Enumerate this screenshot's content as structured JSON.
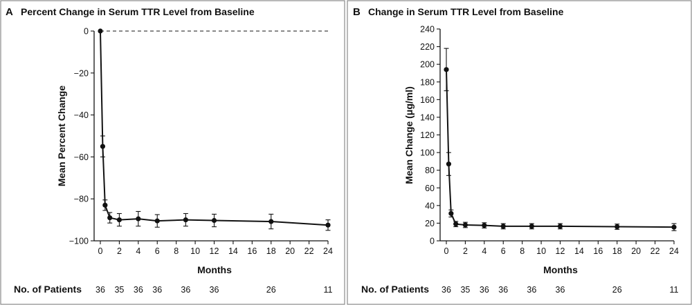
{
  "patients_label": "No. of Patients",
  "chart_data": [
    {
      "panel": "A",
      "type": "line",
      "title": "Percent Change in Serum TTR Level from Baseline",
      "xlabel": "Months",
      "ylabel": "Mean Percent Change",
      "xlim": [
        0,
        24
      ],
      "ylim": [
        -100,
        0
      ],
      "x_ticks": [
        0,
        2,
        4,
        6,
        8,
        10,
        12,
        14,
        16,
        18,
        20,
        22,
        24
      ],
      "y_ticks": [
        0,
        -20,
        -40,
        -60,
        -80,
        -100
      ],
      "y_tick_labels": [
        "0",
        "−20",
        "−40",
        "−60",
        "−80",
        "−100"
      ],
      "reference_line": 0,
      "series": [
        {
          "name": "Mean percent change",
          "x": [
            0,
            0.25,
            0.5,
            1,
            2,
            4,
            6,
            9,
            12,
            18,
            24
          ],
          "y": [
            0,
            -55,
            -83,
            -89,
            -90,
            -89.5,
            -90.5,
            -90,
            -90.3,
            -90.8,
            -92.5
          ],
          "err_low": [
            0,
            5,
            2.5,
            2.5,
            3,
            3.5,
            3,
            3,
            3,
            3.5,
            2.5
          ],
          "err_high": [
            0,
            5,
            2.5,
            2.5,
            3,
            3.5,
            3,
            3,
            3,
            3.5,
            2.5
          ]
        }
      ],
      "patients": [
        {
          "x": 0,
          "n": "36"
        },
        {
          "x": 2,
          "n": "35"
        },
        {
          "x": 4,
          "n": "36"
        },
        {
          "x": 6,
          "n": "36"
        },
        {
          "x": 9,
          "n": "36"
        },
        {
          "x": 12,
          "n": "36"
        },
        {
          "x": 18,
          "n": "26"
        },
        {
          "x": 24,
          "n": "11"
        }
      ]
    },
    {
      "panel": "B",
      "type": "line",
      "title": "Change in Serum TTR Level from Baseline",
      "xlabel": "Months",
      "ylabel": "Mean Change (μg/ml)",
      "xlim": [
        0,
        24
      ],
      "ylim": [
        0,
        240
      ],
      "x_ticks": [
        0,
        2,
        4,
        6,
        8,
        10,
        12,
        14,
        16,
        18,
        20,
        22,
        24
      ],
      "y_ticks": [
        0,
        20,
        40,
        60,
        80,
        100,
        120,
        140,
        160,
        180,
        200,
        220,
        240
      ],
      "y_tick_labels": [
        "0",
        "20",
        "40",
        "60",
        "80",
        "100",
        "120",
        "140",
        "160",
        "180",
        "200",
        "220",
        "240"
      ],
      "series": [
        {
          "name": "Mean change",
          "x": [
            0,
            0.25,
            0.5,
            1,
            2,
            4,
            6,
            9,
            12,
            18,
            24
          ],
          "y": [
            194,
            87,
            31,
            19,
            18,
            17.5,
            16.5,
            16.5,
            16.5,
            16,
            15.5
          ],
          "err_low": [
            24,
            13,
            4,
            3,
            3,
            3,
            3,
            3,
            3,
            3,
            4
          ],
          "err_high": [
            24,
            13,
            4,
            3,
            3,
            3,
            3,
            3,
            3,
            3,
            4
          ]
        }
      ],
      "patients": [
        {
          "x": 0,
          "n": "36"
        },
        {
          "x": 2,
          "n": "35"
        },
        {
          "x": 4,
          "n": "36"
        },
        {
          "x": 6,
          "n": "36"
        },
        {
          "x": 9,
          "n": "36"
        },
        {
          "x": 12,
          "n": "36"
        },
        {
          "x": 18,
          "n": "26"
        },
        {
          "x": 24,
          "n": "11"
        }
      ]
    }
  ]
}
